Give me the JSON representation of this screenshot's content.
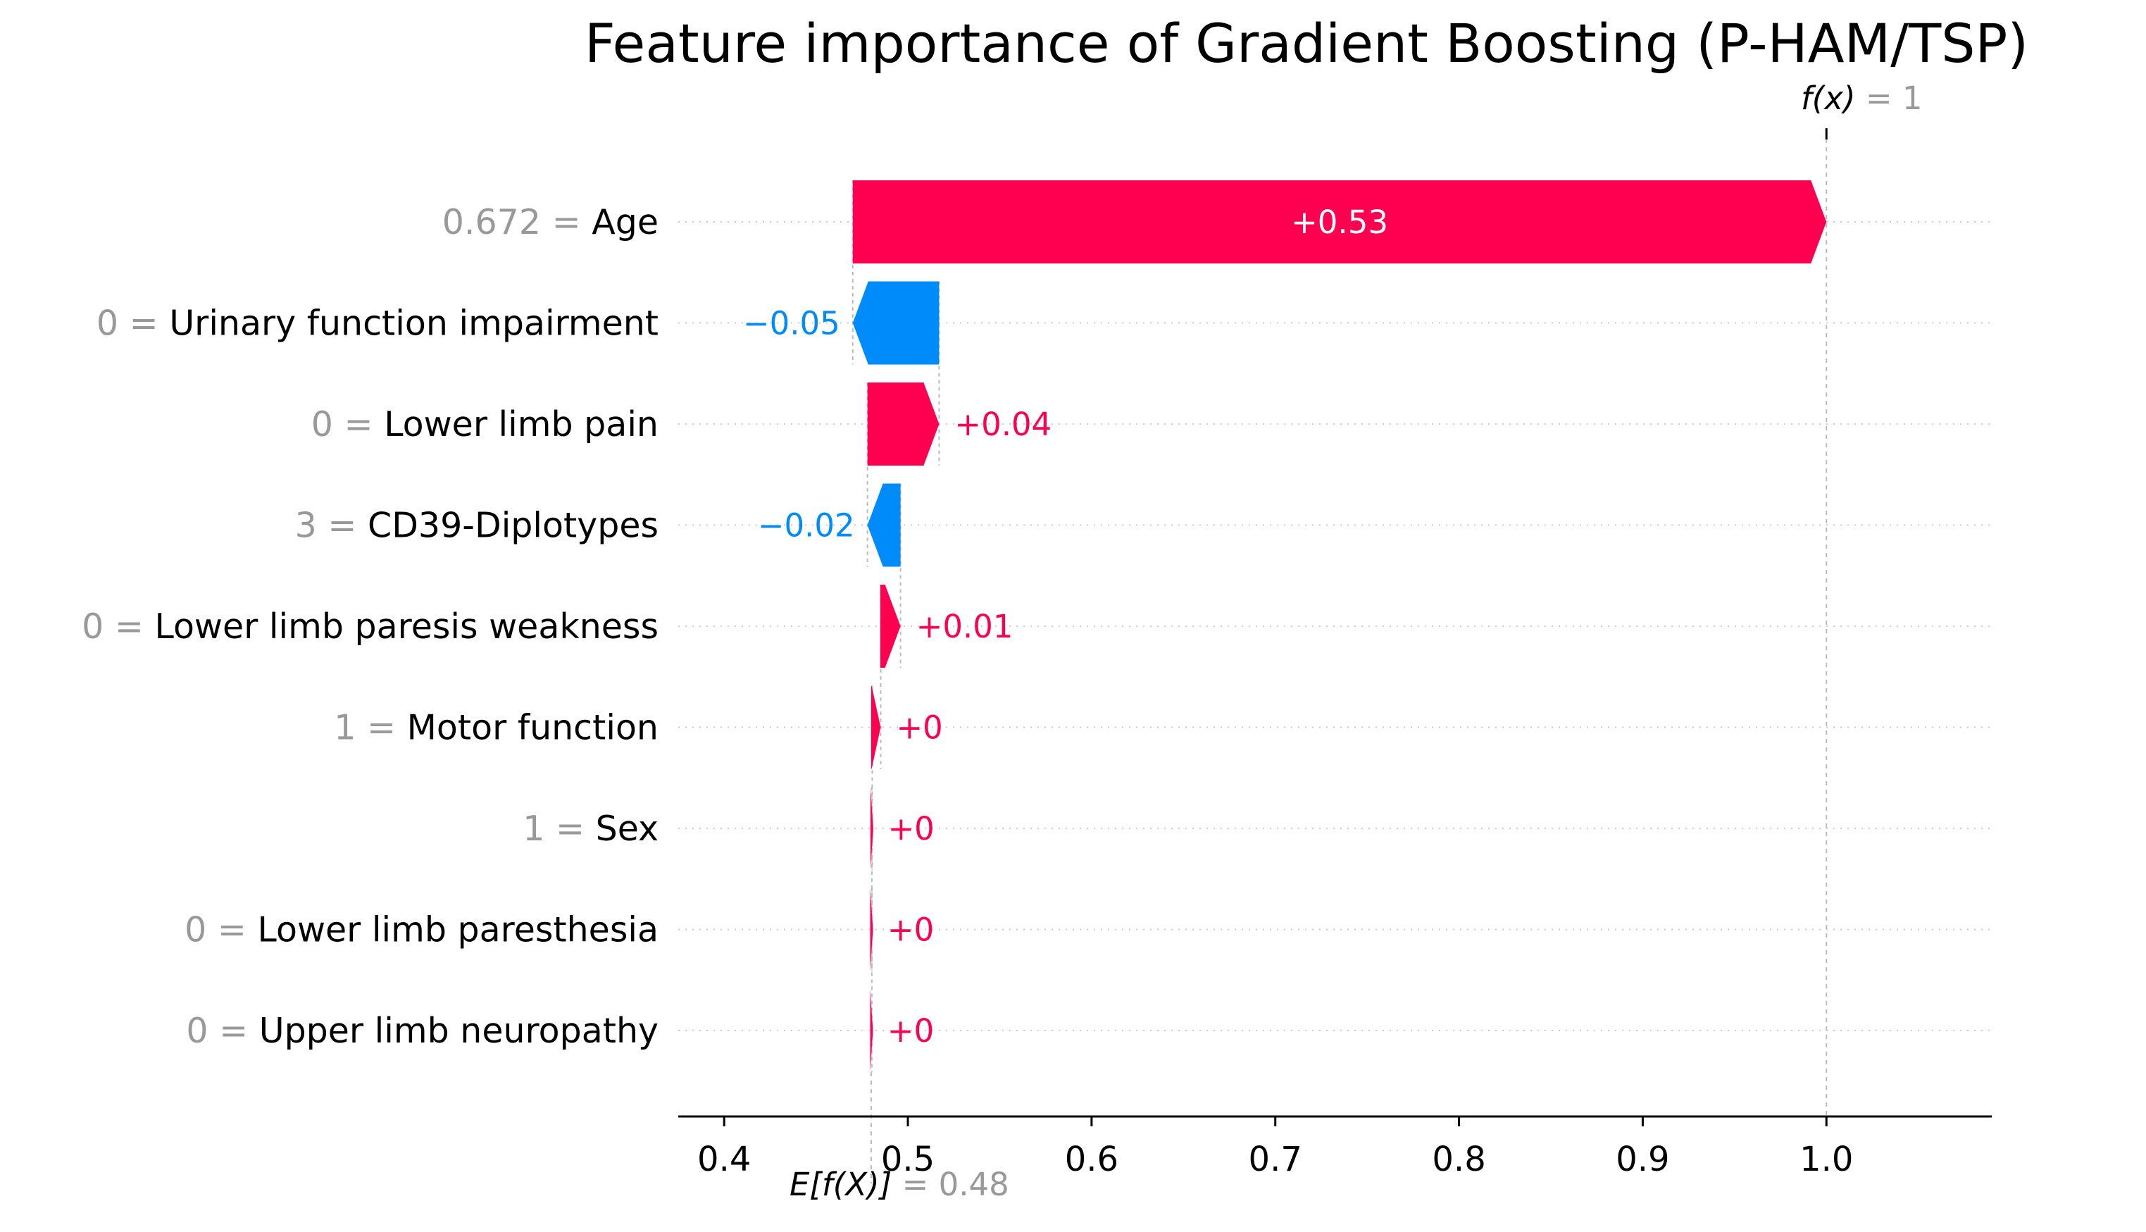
{
  "chart_data": {
    "type": "waterfall",
    "title": "Feature importance of Gradient Boosting (P-HAM/TSP)",
    "base_value": 0.48,
    "output_value": 1,
    "base_label": "E[f(X)]",
    "base_value_text": "= 0.48",
    "output_label": "f(x)",
    "output_value_text": "= 1",
    "xlim": [
      0.375,
      1.09
    ],
    "xticks": [
      0.4,
      0.5,
      0.6,
      0.7,
      0.8,
      0.9,
      1.0
    ],
    "xtick_labels": [
      "0.4",
      "0.5",
      "0.6",
      "0.7",
      "0.8",
      "0.9",
      "1.0"
    ],
    "grid": "horizontal dotted",
    "colors": {
      "positive": "#ff0051",
      "negative": "#008bfb",
      "muted_text": "#999999",
      "text": "#000000"
    },
    "features": [
      {
        "feature_value": "0.672",
        "name": "Age",
        "start": 0.47,
        "end": 1.0,
        "label": "+0.53"
      },
      {
        "feature_value": "0",
        "name": "Urinary function impairment",
        "start": 0.517,
        "end": 0.47,
        "label": "−0.05"
      },
      {
        "feature_value": "0",
        "name": "Lower limb pain",
        "start": 0.478,
        "end": 0.517,
        "label": "+0.04"
      },
      {
        "feature_value": "3",
        "name": "CD39-Diplotypes",
        "start": 0.496,
        "end": 0.478,
        "label": "−0.02"
      },
      {
        "feature_value": "0",
        "name": "Lower limb paresis weakness",
        "start": 0.485,
        "end": 0.496,
        "label": "+0.01"
      },
      {
        "feature_value": "1",
        "name": "Motor function",
        "start": 0.48,
        "end": 0.4852,
        "label": "+0"
      },
      {
        "feature_value": "1",
        "name": "Sex",
        "start": 0.4798,
        "end": 0.4806,
        "label": "+0"
      },
      {
        "feature_value": "0",
        "name": "Lower limb paresthesia",
        "start": 0.4797,
        "end": 0.4804,
        "label": "+0"
      },
      {
        "feature_value": "0",
        "name": "Upper limb neuropathy",
        "start": 0.4797,
        "end": 0.4804,
        "label": "+0"
      }
    ]
  }
}
